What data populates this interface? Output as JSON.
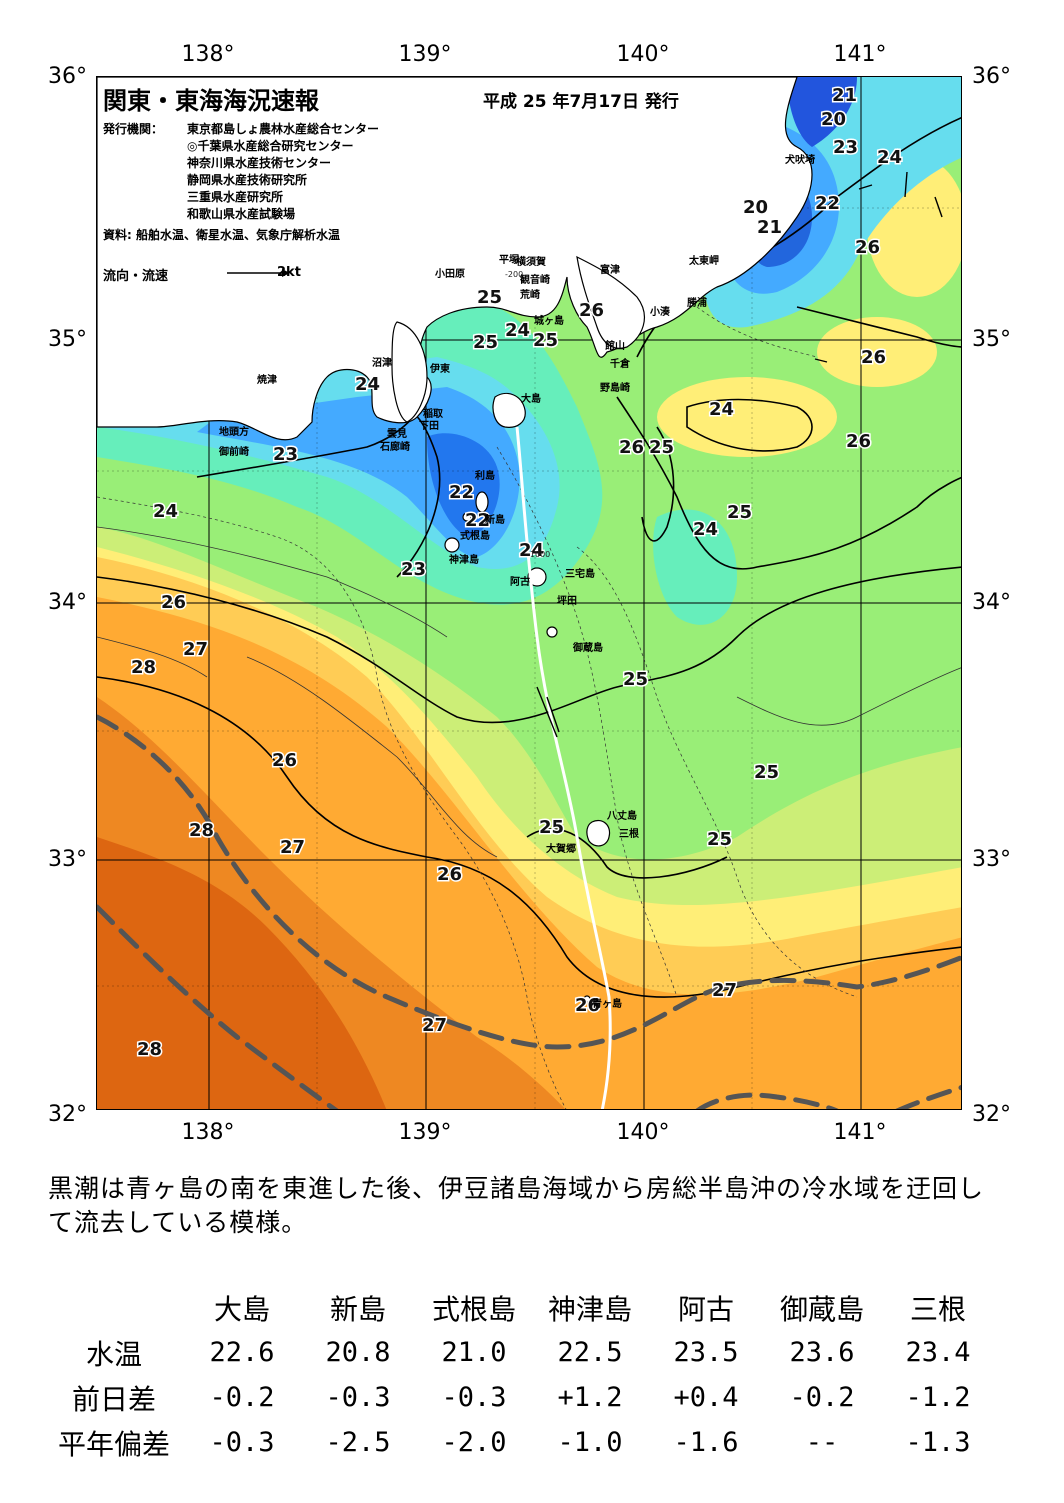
{
  "map": {
    "longitude_labels": [
      "138°",
      "139°",
      "140°",
      "141°"
    ],
    "latitude_labels": [
      "36°",
      "35°",
      "34°",
      "33°",
      "32°"
    ],
    "title": "関東・東海海況速報",
    "issue_date": "平成 25 年7月17日 発行",
    "issuers_label": "発行機関：",
    "issuers": [
      "東京都島しょ農林水産総合センター",
      "◎千葉県水産総合研究センター",
      "神奈川県水産技術センター",
      "静岡県水産技術研究所",
      "三重県水産研究所",
      "和歌山県水産試験場"
    ],
    "sources": "資料: 船舶水温、衛星水温、気象庁解析水温",
    "legend_label": "流向・流速",
    "legend_scale": "2kt",
    "isotherm_labels": [
      "21",
      "20",
      "23",
      "24",
      "20",
      "21",
      "22",
      "26",
      "25",
      "26",
      "25",
      "24",
      "25",
      "26",
      "24",
      "24",
      "25",
      "26",
      "26",
      "25",
      "24",
      "23",
      "22",
      "22",
      "24",
      "23",
      "24",
      "26",
      "27",
      "28",
      "25",
      "26",
      "28",
      "27",
      "26",
      "25",
      "25",
      "25",
      "27",
      "26",
      "27",
      "28"
    ],
    "place_names": [
      "犬吠埼",
      "太東岬",
      "勝浦",
      "小湊",
      "富津",
      "横須賀",
      "観音崎",
      "平塚",
      "荒崎",
      "城ヶ島",
      "小田原",
      "館山",
      "千倉",
      "野島崎",
      "沼津",
      "伊東",
      "焼津",
      "稲取",
      "下田",
      "雲見",
      "石廊崎",
      "地頭方",
      "御前崎",
      "大島",
      "利島",
      "新島",
      "式根島",
      "神津島",
      "三宅島",
      "阿古",
      "坪田",
      "御蔵島",
      "八丈島",
      "三根",
      "大賀郷",
      "青ヶ島"
    ],
    "depth_labels": [
      "-200",
      "-1000"
    ]
  },
  "summary": "黒潮は青ヶ島の南を東進した後、伊豆諸島海域から房総半島沖の冷水域を迂回して流去している模様。",
  "table": {
    "stations": [
      "大島",
      "新島",
      "式根島",
      "神津島",
      "阿古",
      "御蔵島",
      "三根"
    ],
    "rows": [
      {
        "label": "水温",
        "values": [
          "22.6",
          "20.8",
          "21.0",
          "22.5",
          "23.5",
          "23.6",
          "23.4"
        ]
      },
      {
        "label": "前日差",
        "values": [
          "-0.2",
          "-0.3",
          "-0.3",
          "+1.2",
          "+0.4",
          "-0.2",
          "-1.2"
        ]
      },
      {
        "label": "平年偏差",
        "values": [
          "-0.3",
          "-2.5",
          "-2.0",
          "-1.0",
          "-1.6",
          "--",
          "-1.3"
        ]
      }
    ]
  },
  "colors": {
    "land": "#ffffff",
    "deep_cold": "#2255dd",
    "cold": "#44aaff",
    "cyan": "#66ddee",
    "teal": "#66eebb",
    "green": "#99ee77",
    "lightgreen": "#ccee77",
    "yellow": "#ffee77",
    "lightorange": "#ffcc55",
    "orange": "#ffaa33",
    "darkorange": "#ee8822",
    "redorange": "#dd6611",
    "kuroshio_axis": "#555555"
  }
}
